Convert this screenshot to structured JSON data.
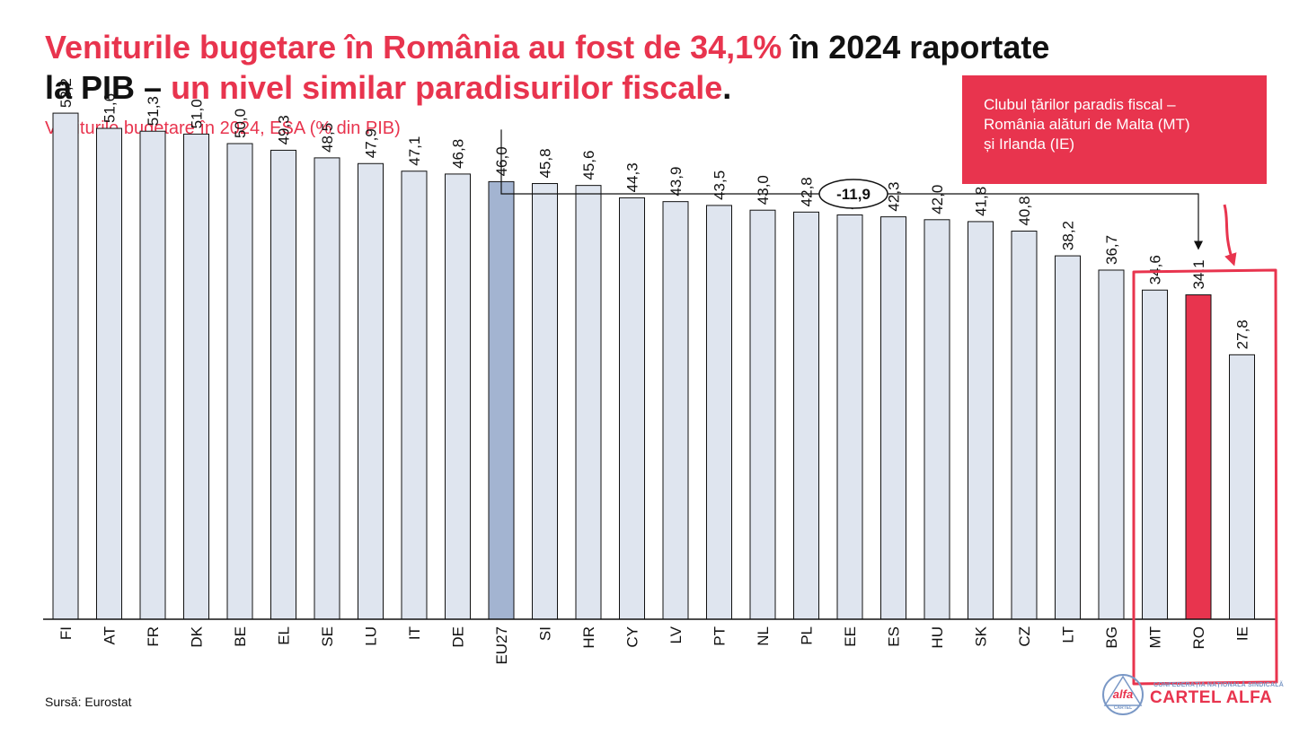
{
  "title": {
    "part1": "Veniturile bugetare în România au fost de 34,1%",
    "part2": " în 2024 raportate",
    "part3": "la PIB – ",
    "part4": "un nivel similar paradisurilor fiscale",
    "part5": "."
  },
  "subtitle": "Veniturile bugetare în 2024, ESA (% din PIB)",
  "callout": {
    "line1": "Clubul țărilor paradis fiscal –",
    "line2": "România alături de Malta (MT)",
    "line3": "și Irlanda (IE)"
  },
  "source": "Sursă: Eurostat",
  "logo": {
    "mark_top": "alfa",
    "mark_bottom": "CARTEL",
    "small": "CONFEDERAȚIA NAȚIONALĂ SINDICALĂ",
    "big": "CARTEL ALFA"
  },
  "colors": {
    "accent": "#e8344e",
    "bar": "#dfe5ef",
    "eu_bar": "#a3b4d1",
    "ro_bar": "#e8344e",
    "logo_blue": "#7a98c6"
  },
  "chart_data": {
    "type": "bar",
    "categories": [
      "FI",
      "AT",
      "FR",
      "DK",
      "BE",
      "EL",
      "SE",
      "LU",
      "IT",
      "DE",
      "EU27",
      "SI",
      "HR",
      "CY",
      "LV",
      "PT",
      "NL",
      "PL",
      "EE",
      "ES",
      "HU",
      "SK",
      "CZ",
      "LT",
      "BG",
      "MT",
      "RO",
      "IE"
    ],
    "values": [
      53.2,
      51.6,
      51.3,
      51.0,
      50.0,
      49.3,
      48.5,
      47.9,
      47.1,
      46.8,
      46.0,
      45.8,
      45.6,
      44.3,
      43.9,
      43.5,
      43.0,
      42.8,
      42.5,
      42.3,
      42.0,
      41.8,
      40.8,
      38.2,
      36.7,
      34.6,
      34.1,
      27.8
    ],
    "value_labels": [
      "53,2",
      "51,6",
      "51,3",
      "51,0",
      "50,0",
      "49,3",
      "48,5",
      "47,9",
      "47,1",
      "46,8",
      "46,0",
      "45,8",
      "45,6",
      "44,3",
      "43,9",
      "43,5",
      "43,0",
      "42,8",
      "42,5",
      "42,3",
      "42,0",
      "41,8",
      "40,8",
      "38,2",
      "36,7",
      "34,6",
      "34,1",
      "27,8"
    ],
    "highlight": {
      "EU27": "eu_bar",
      "RO": "ro_bar"
    },
    "difference": {
      "from": "EU27",
      "to": "RO",
      "label": "-11,9"
    },
    "boxed_categories": [
      "MT",
      "RO",
      "IE"
    ],
    "ylim": [
      0,
      60
    ],
    "grid": false,
    "xlabel": "",
    "ylabel": ""
  }
}
